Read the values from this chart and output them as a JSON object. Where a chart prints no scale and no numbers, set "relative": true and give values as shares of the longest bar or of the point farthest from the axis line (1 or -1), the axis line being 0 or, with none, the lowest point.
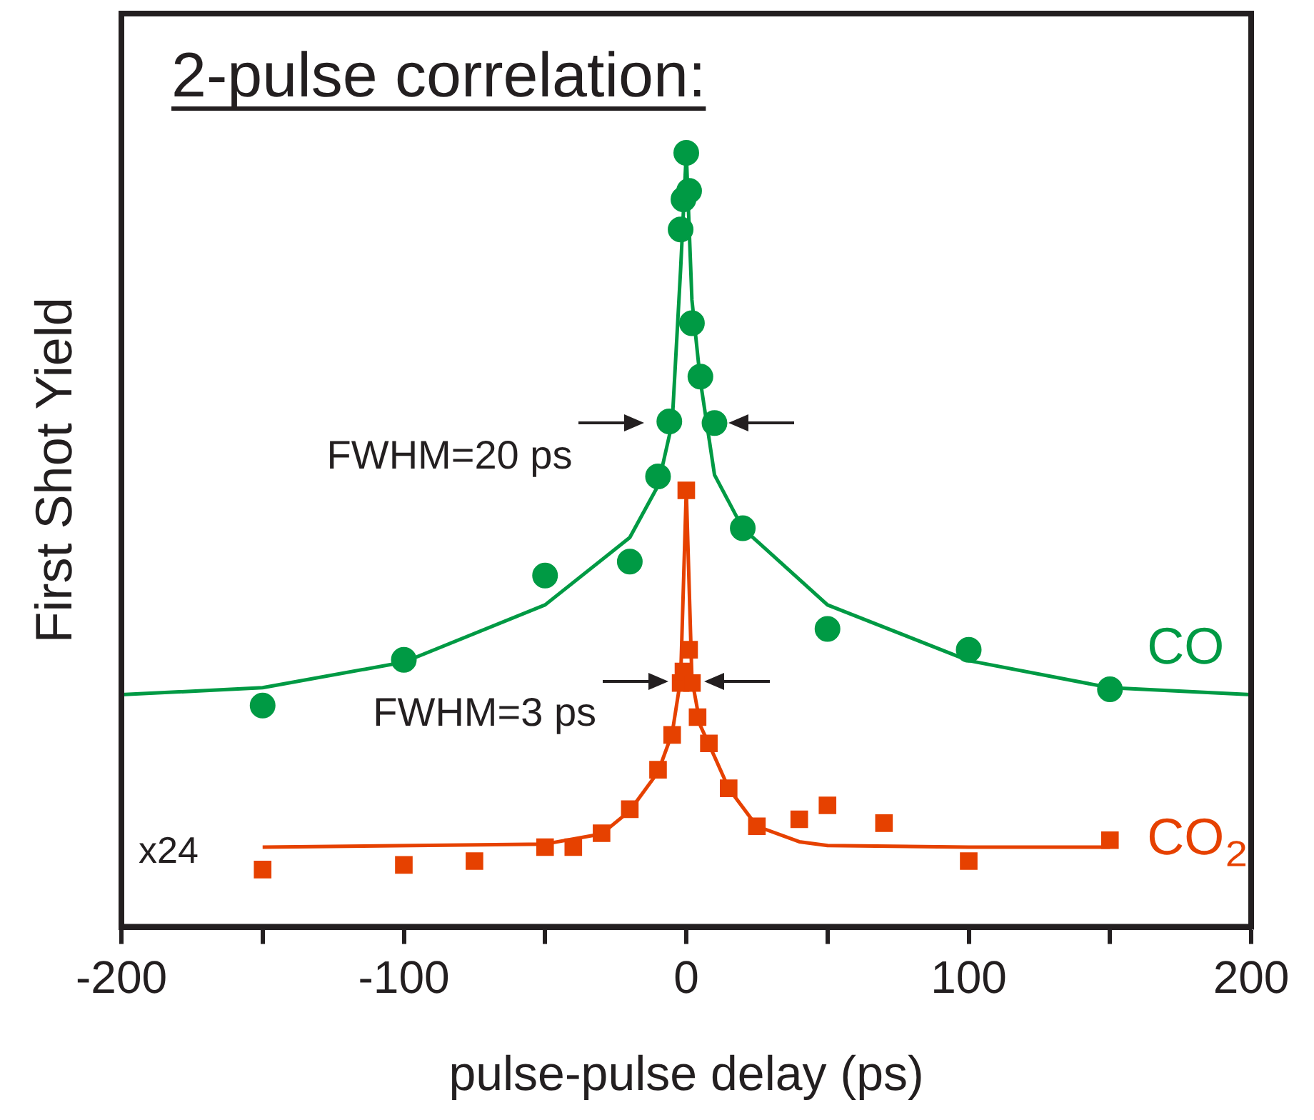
{
  "chart_data": {
    "type": "line",
    "title": "2-pulse correlation:",
    "xlabel": "pulse-pulse delay (ps)",
    "ylabel": "First Shot Yield",
    "relative": true,
    "xlim": [
      -200,
      200
    ],
    "xticks": [
      -200,
      {
        "value": -150,
        "label": null
      },
      -100,
      {
        "value": -50,
        "label": null
      },
      0,
      {
        "value": 50,
        "label": null
      },
      100,
      {
        "value": 150,
        "label": null
      },
      200
    ],
    "grid": false,
    "legend": false,
    "annotations": [
      {
        "text": "FWHM=20 ps",
        "x": -10,
        "y": 0.651
      },
      {
        "text": "FWHM=3 ps",
        "x": -1.5,
        "y": 0.318
      },
      "x24"
    ],
    "series": [
      {
        "name": "CO",
        "type": "scatter",
        "marker": "circle",
        "color": "#009a44",
        "x": [
          -150,
          -100,
          -50,
          -20,
          -10,
          -6,
          -2,
          -1,
          0,
          1,
          2,
          5,
          10,
          20,
          50,
          100,
          150
        ],
        "values": [
          0.286,
          0.345,
          0.454,
          0.472,
          0.582,
          0.653,
          0.901,
          0.94,
          1.0,
          0.951,
          0.78,
          0.711,
          0.651,
          0.515,
          0.385,
          0.358,
          0.307
        ]
      },
      {
        "type": "line",
        "marker": "none",
        "color": "#009a44",
        "x": [
          -200,
          -150,
          -100,
          -50,
          -20,
          -10,
          -5,
          -2,
          0,
          2,
          5,
          10,
          20,
          50,
          100,
          150,
          200
        ],
        "values": [
          0.3,
          0.309,
          0.342,
          0.416,
          0.503,
          0.57,
          0.651,
          0.85,
          1.0,
          0.81,
          0.705,
          0.584,
          0.515,
          0.416,
          0.344,
          0.309,
          0.3
        ]
      },
      {
        "name": "CO₂",
        "type": "scatter",
        "marker": "square",
        "color": "#e64100",
        "x": [
          -150,
          -100,
          -75,
          -50,
          -40,
          -30,
          -20,
          -10,
          -5,
          -2,
          -1,
          0,
          1,
          2,
          4,
          8,
          15,
          25,
          40,
          50,
          70,
          100,
          150
        ],
        "values": [
          0.074,
          0.08,
          0.085,
          0.103,
          0.103,
          0.121,
          0.152,
          0.203,
          0.248,
          0.315,
          0.33,
          0.564,
          0.358,
          0.315,
          0.271,
          0.237,
          0.179,
          0.13,
          0.139,
          0.157,
          0.134,
          0.085,
          0.112
        ]
      },
      {
        "type": "line",
        "marker": "none",
        "color": "#e64100",
        "x": [
          -150,
          -50,
          -30,
          -20,
          -10,
          -5,
          -2,
          0,
          2,
          5,
          10,
          15,
          25,
          40,
          50,
          100,
          150
        ],
        "values": [
          0.103,
          0.107,
          0.12,
          0.15,
          0.2,
          0.25,
          0.32,
          0.564,
          0.32,
          0.26,
          0.22,
          0.179,
          0.13,
          0.11,
          0.105,
          0.103,
          0.103
        ]
      }
    ]
  }
}
